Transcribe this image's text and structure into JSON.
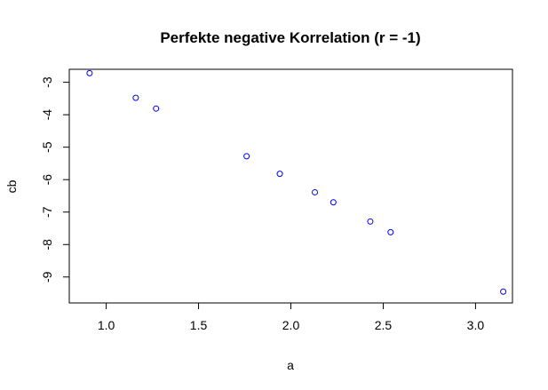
{
  "chart_data": {
    "type": "scatter",
    "title": "Perfekte negative Korrelation (r = -1)",
    "xlabel": "a",
    "ylabel": "cb",
    "xlim": [
      0.8,
      3.2
    ],
    "ylim": [
      -9.8,
      -2.6
    ],
    "xticks": [
      1.0,
      1.5,
      2.0,
      2.5,
      3.0
    ],
    "xtick_labels": [
      "1.0",
      "1.5",
      "2.0",
      "2.5",
      "3.0"
    ],
    "yticks": [
      -9,
      -8,
      -7,
      -6,
      -5,
      -4,
      -3
    ],
    "ytick_labels": [
      "-9",
      "-8",
      "-7",
      "-6",
      "-5",
      "-4",
      "-3"
    ],
    "grid": false,
    "point_color": "#0000ff",
    "series": [
      {
        "x": [
          0.91,
          1.16,
          1.27,
          1.76,
          1.94,
          2.13,
          2.23,
          2.43,
          2.54,
          3.15
        ],
        "y": [
          -2.72,
          -3.48,
          -3.81,
          -5.28,
          -5.82,
          -6.39,
          -6.7,
          -7.29,
          -7.62,
          -9.45
        ]
      }
    ]
  }
}
